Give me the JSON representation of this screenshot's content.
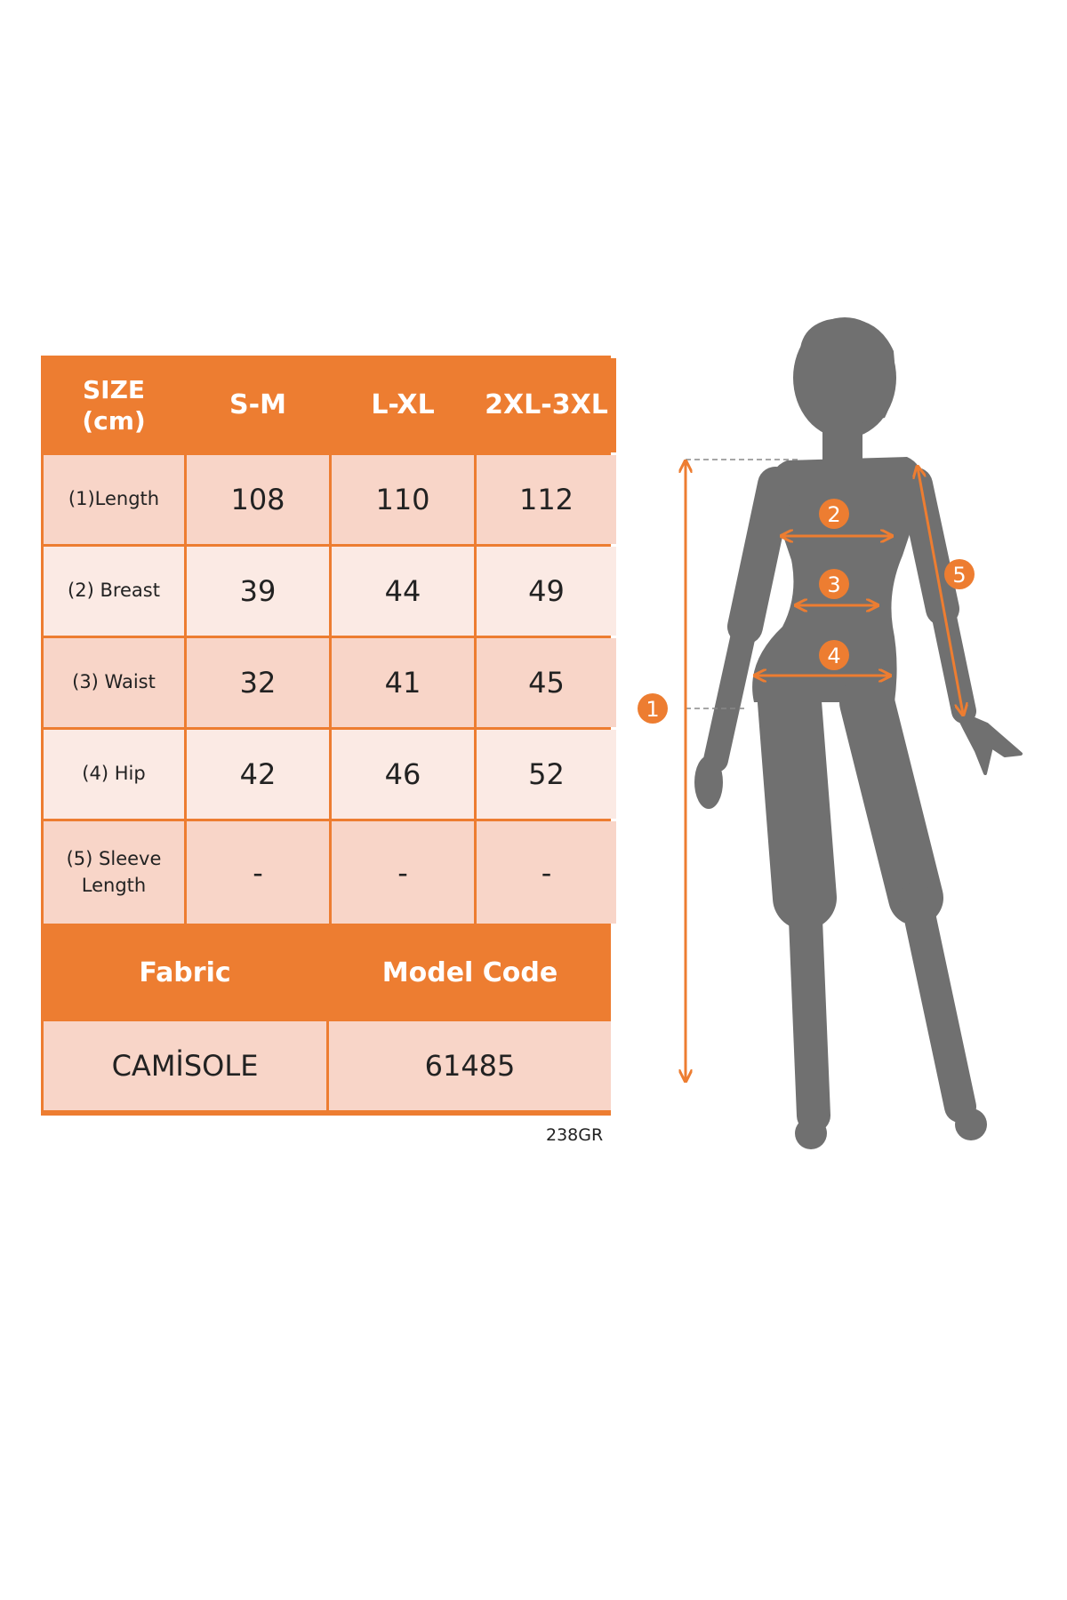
{
  "table": {
    "header": [
      "SIZE\n(cm)",
      "S-M",
      "L-XL",
      "2XL-3XL"
    ],
    "header_size": "SIZE",
    "header_unit": "(cm)",
    "rows": [
      {
        "label": "(1)Length",
        "values": [
          "108",
          "110",
          "112"
        ]
      },
      {
        "label": "(2) Breast",
        "values": [
          "39",
          "44",
          "49"
        ]
      },
      {
        "label": "(3) Waist",
        "values": [
          "32",
          "41",
          "45"
        ]
      },
      {
        "label": "(4) Hip",
        "values": [
          "42",
          "46",
          "52"
        ]
      },
      {
        "label_line1": "(5) Sleeve",
        "label_line2": "Length",
        "values": [
          "-",
          "-",
          "-"
        ]
      }
    ],
    "fabric_label": "Fabric",
    "model_code_label": "Model Code",
    "fabric_value": "CAMİSOLE",
    "model_code_value": "61485"
  },
  "code_note": "238GR",
  "figure": {
    "markers": [
      "1",
      "2",
      "3",
      "4",
      "5"
    ]
  },
  "colors": {
    "accent": "#ED7D31",
    "row_dark": "#F8D5C8",
    "row_light": "#FBEAE4",
    "silhouette": "#707070"
  }
}
